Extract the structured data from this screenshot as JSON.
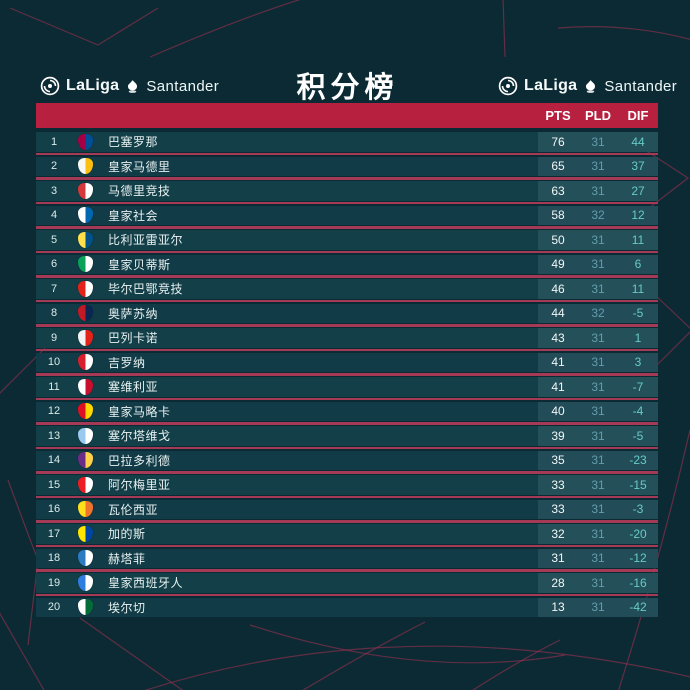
{
  "page": {
    "title": "积分榜"
  },
  "brand": {
    "laliga_label": "LaLiga",
    "santander_label": "Santander"
  },
  "colors": {
    "background": "#0c2a33",
    "header_bar_red": "#b7203f",
    "separator_red": "#a43a56",
    "row_teal": "#123f48",
    "pts_text": "#f2f7f7",
    "pld_text": "#649dab",
    "dif_text": "#66cbc6",
    "bg_line_red": "#a83253"
  },
  "table": {
    "headers": {
      "pts": "PTS",
      "pld": "PLD",
      "dif": "DIF"
    },
    "rows": [
      {
        "rank": "1",
        "team": "巴塞罗那",
        "pts": "76",
        "pld": "31",
        "dif": "44",
        "crest": [
          "#a50044",
          "#004d98"
        ]
      },
      {
        "rank": "2",
        "team": "皇家马德里",
        "pts": "65",
        "pld": "31",
        "dif": "37",
        "crest": [
          "#f8f8f2",
          "#febe10"
        ]
      },
      {
        "rank": "3",
        "team": "马德里竞技",
        "pts": "63",
        "pld": "31",
        "dif": "27",
        "crest": [
          "#d6373a",
          "#ffffff"
        ]
      },
      {
        "rank": "4",
        "team": "皇家社会",
        "pts": "58",
        "pld": "32",
        "dif": "12",
        "crest": [
          "#ffffff",
          "#0067b2"
        ]
      },
      {
        "rank": "5",
        "team": "比利亚雷亚尔",
        "pts": "50",
        "pld": "31",
        "dif": "11",
        "crest": [
          "#ffe04b",
          "#005187"
        ]
      },
      {
        "rank": "6",
        "team": "皇家贝蒂斯",
        "pts": "49",
        "pld": "31",
        "dif": "6",
        "crest": [
          "#0aa159",
          "#ffffff"
        ]
      },
      {
        "rank": "7",
        "team": "毕尔巴鄂竞技",
        "pts": "46",
        "pld": "31",
        "dif": "11",
        "crest": [
          "#e32219",
          "#ffffff"
        ]
      },
      {
        "rank": "8",
        "team": "奥萨苏纳",
        "pts": "44",
        "pld": "32",
        "dif": "-5",
        "crest": [
          "#c21a24",
          "#0b2653"
        ]
      },
      {
        "rank": "9",
        "team": "巴列卡诺",
        "pts": "43",
        "pld": "31",
        "dif": "1",
        "crest": [
          "#f3f3f3",
          "#e32219"
        ]
      },
      {
        "rank": "10",
        "team": "吉罗纳",
        "pts": "41",
        "pld": "31",
        "dif": "3",
        "crest": [
          "#d7202c",
          "#ffffff"
        ]
      },
      {
        "rank": "11",
        "team": "塞维利亚",
        "pts": "41",
        "pld": "31",
        "dif": "-7",
        "crest": [
          "#ffffff",
          "#c8102e"
        ]
      },
      {
        "rank": "12",
        "team": "皇家马略卡",
        "pts": "40",
        "pld": "31",
        "dif": "-4",
        "crest": [
          "#e20f23",
          "#ffd700"
        ]
      },
      {
        "rank": "13",
        "team": "塞尔塔维戈",
        "pts": "39",
        "pld": "31",
        "dif": "-5",
        "crest": [
          "#9ac9ef",
          "#ffffff"
        ]
      },
      {
        "rank": "14",
        "team": "巴拉多利德",
        "pts": "35",
        "pld": "31",
        "dif": "-23",
        "crest": [
          "#6a2d87",
          "#ffd24a"
        ]
      },
      {
        "rank": "15",
        "team": "阿尔梅里亚",
        "pts": "33",
        "pld": "31",
        "dif": "-15",
        "crest": [
          "#ee1d23",
          "#ffffff"
        ]
      },
      {
        "rank": "16",
        "team": "瓦伦西亚",
        "pts": "33",
        "pld": "31",
        "dif": "-3",
        "crest": [
          "#ffdf1c",
          "#f0752c"
        ]
      },
      {
        "rank": "17",
        "team": "加的斯",
        "pts": "32",
        "pld": "31",
        "dif": "-20",
        "crest": [
          "#ffe400",
          "#0045a1"
        ]
      },
      {
        "rank": "18",
        "team": "赫塔菲",
        "pts": "31",
        "pld": "31",
        "dif": "-12",
        "crest": [
          "#2b7bc2",
          "#ffffff"
        ]
      },
      {
        "rank": "19",
        "team": "皇家西班牙人",
        "pts": "28",
        "pld": "31",
        "dif": "-16",
        "crest": [
          "#2f7edf",
          "#ffffff"
        ]
      },
      {
        "rank": "20",
        "team": "埃尔切",
        "pts": "13",
        "pld": "31",
        "dif": "-42",
        "crest": [
          "#ffffff",
          "#046c38"
        ]
      }
    ]
  }
}
